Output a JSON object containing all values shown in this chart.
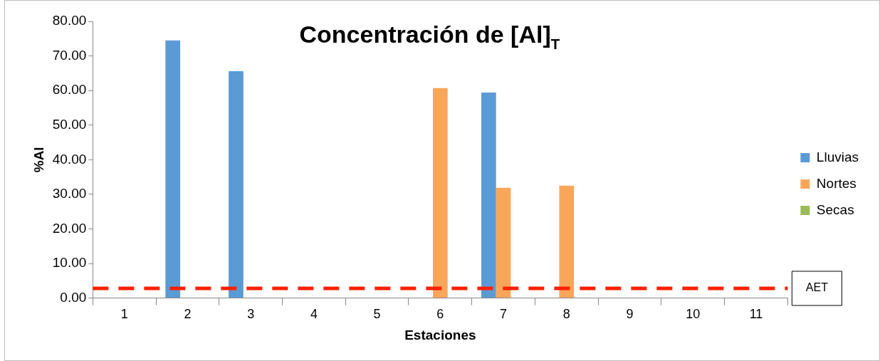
{
  "chart_data": {
    "type": "bar",
    "title": "Concentración de [Al]$_{T}$",
    "xlabel": "Estaciones",
    "ylabel": "%Al",
    "categories": [
      "1",
      "2",
      "3",
      "4",
      "5",
      "6",
      "7",
      "8",
      "9",
      "10",
      "11"
    ],
    "series": [
      {
        "name": "Lluvias",
        "color": "#5b9bd5",
        "values": [
          null,
          74.5,
          65.6,
          null,
          null,
          null,
          59.4,
          null,
          null,
          null,
          null
        ]
      },
      {
        "name": "Nortes",
        "color": "#f9a65a",
        "values": [
          null,
          null,
          null,
          null,
          null,
          60.7,
          31.9,
          32.5,
          null,
          null,
          null
        ]
      },
      {
        "name": "Secas",
        "color": "#9bbb59",
        "values": [
          null,
          null,
          null,
          null,
          null,
          null,
          null,
          null,
          null,
          null,
          null
        ]
      }
    ],
    "ylim": [
      0,
      80
    ],
    "yticks": [
      {
        "value": 0,
        "label": "0.00"
      },
      {
        "value": 10,
        "label": "10.00"
      },
      {
        "value": 20,
        "label": "20.00"
      },
      {
        "value": 30,
        "label": "30.00"
      },
      {
        "value": 40,
        "label": "40.00"
      },
      {
        "value": 50,
        "label": "50.00"
      },
      {
        "value": 60,
        "label": "60.00"
      },
      {
        "value": 70,
        "label": "70.00"
      },
      {
        "value": 80,
        "label": "80.00"
      }
    ],
    "ref_lines": [
      {
        "axis": "y",
        "value": 2.8,
        "label": "AET",
        "color": "#ff2000",
        "line_style": "dashed"
      }
    ],
    "grid": false,
    "legend": "right"
  }
}
